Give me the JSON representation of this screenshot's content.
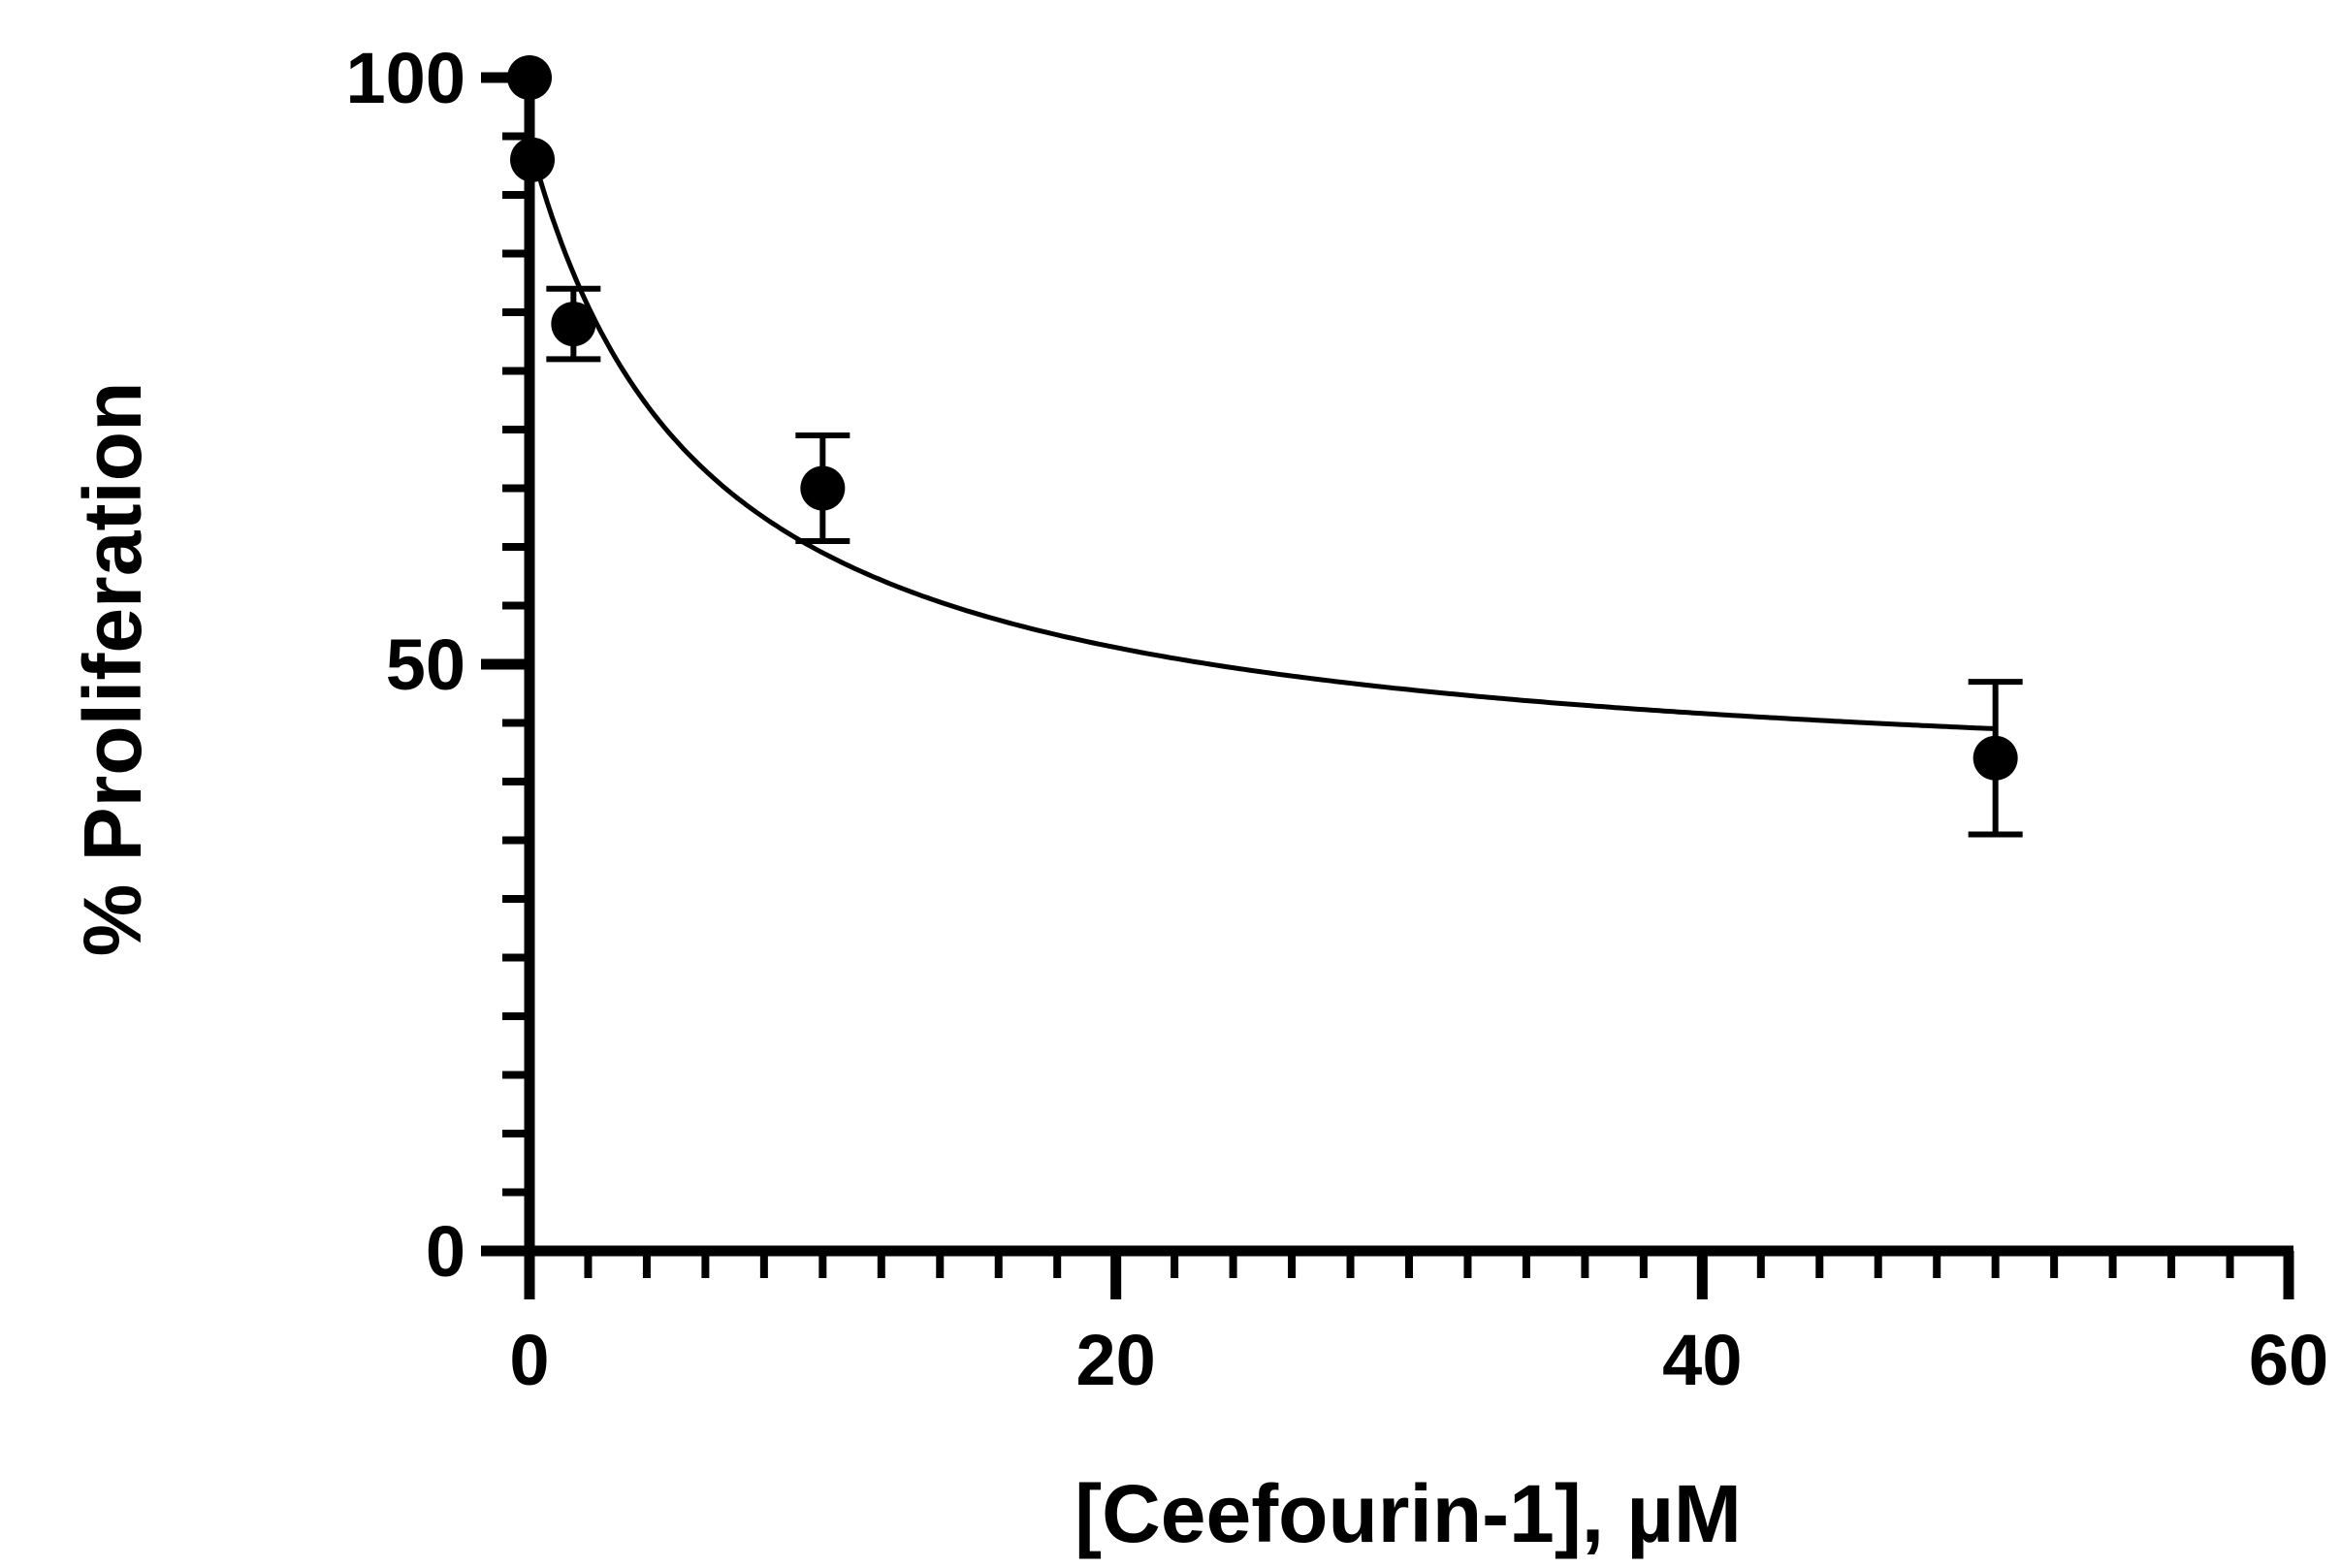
{
  "chart_data": {
    "type": "scatter",
    "title": "",
    "xlabel": "[Ceefourin-1], µM",
    "ylabel": "% Proliferation",
    "xlim": [
      0,
      60
    ],
    "ylim": [
      0,
      100
    ],
    "x_ticks": [
      "0",
      "20",
      "40",
      "60"
    ],
    "y_ticks": [
      "0",
      "50",
      "100"
    ],
    "x_minor_step": 2,
    "y_minor_step": 5,
    "grid": false,
    "legend": "none",
    "colors": {
      "marker": "#000000",
      "line": "#000000",
      "axis": "#000000"
    },
    "series": [
      {
        "x": [
          0,
          0.1,
          1.5,
          10,
          50
        ],
        "y": [
          100,
          93,
          79,
          65,
          42
        ],
        "error": [
          0,
          0,
          3,
          4.5,
          6.5
        ]
      }
    ],
    "fit": {
      "model": "one-phase inhibition",
      "bottom": 38.5,
      "top": 94.5,
      "ic50": 6,
      "x_range": [
        0.1,
        50
      ]
    }
  }
}
